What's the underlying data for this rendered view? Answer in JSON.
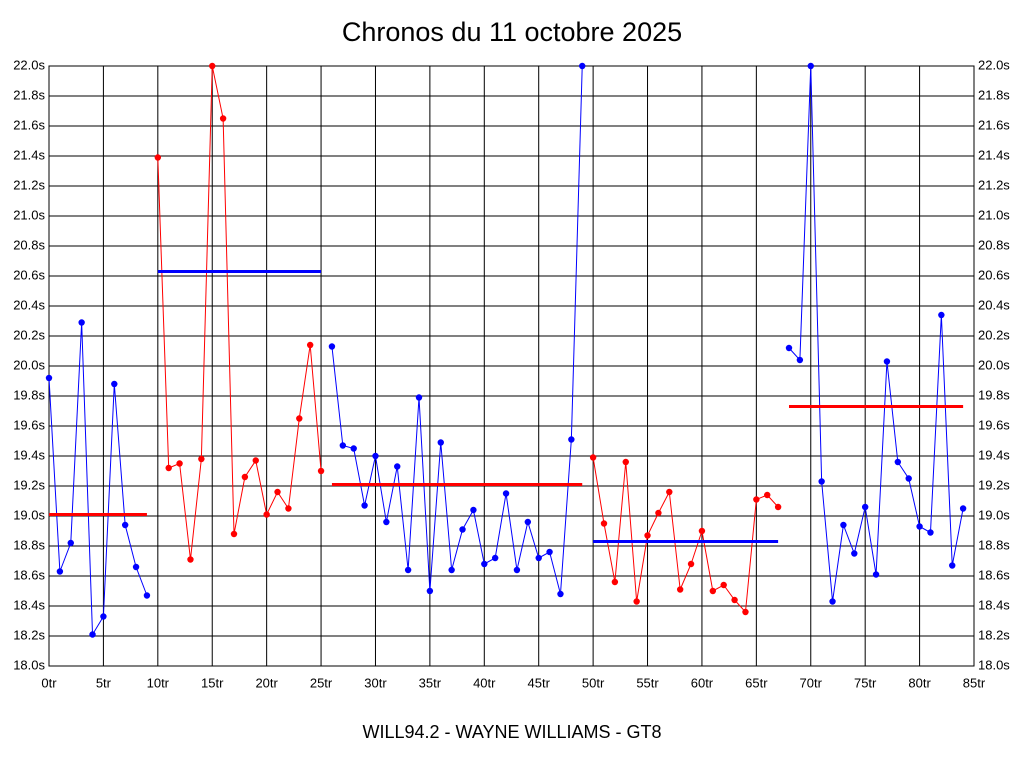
{
  "chart_data": {
    "type": "line",
    "title": "Chronos du 11 octobre 2025",
    "xlabel": "WILL94.2 - WAYNE WILLIAMS - GT8",
    "xlim": [
      0,
      85
    ],
    "xticks": [
      {
        "value": 0,
        "label": "0tr"
      },
      {
        "value": 5,
        "label": "5tr"
      },
      {
        "value": 10,
        "label": "10tr"
      },
      {
        "value": 15,
        "label": "15tr"
      },
      {
        "value": 20,
        "label": "20tr"
      },
      {
        "value": 25,
        "label": "25tr"
      },
      {
        "value": 30,
        "label": "30tr"
      },
      {
        "value": 35,
        "label": "35tr"
      },
      {
        "value": 40,
        "label": "40tr"
      },
      {
        "value": 45,
        "label": "45tr"
      },
      {
        "value": 50,
        "label": "50tr"
      },
      {
        "value": 55,
        "label": "55tr"
      },
      {
        "value": 60,
        "label": "60tr"
      },
      {
        "value": 65,
        "label": "65tr"
      },
      {
        "value": 70,
        "label": "70tr"
      },
      {
        "value": 75,
        "label": "75tr"
      },
      {
        "value": 80,
        "label": "80tr"
      },
      {
        "value": 85,
        "label": "85tr"
      }
    ],
    "ylim": [
      18,
      22
    ],
    "yticks": [
      {
        "value": 18,
        "label": "18.0s"
      },
      {
        "value": 18.2,
        "label": "18.2s"
      },
      {
        "value": 18.4,
        "label": "18.4s"
      },
      {
        "value": 18.6,
        "label": "18.6s"
      },
      {
        "value": 18.8,
        "label": "18.8s"
      },
      {
        "value": 19,
        "label": "19.0s"
      },
      {
        "value": 19.2,
        "label": "19.2s"
      },
      {
        "value": 19.4,
        "label": "19.4s"
      },
      {
        "value": 19.6,
        "label": "19.6s"
      },
      {
        "value": 19.8,
        "label": "19.8s"
      },
      {
        "value": 20,
        "label": "20.0s"
      },
      {
        "value": 20.2,
        "label": "20.2s"
      },
      {
        "value": 20.4,
        "label": "20.4s"
      },
      {
        "value": 20.6,
        "label": "20.6s"
      },
      {
        "value": 20.8,
        "label": "20.8s"
      },
      {
        "value": 21,
        "label": "21.0s"
      },
      {
        "value": 21.2,
        "label": "21.2s"
      },
      {
        "value": 21.4,
        "label": "21.4s"
      },
      {
        "value": 21.6,
        "label": "21.6s"
      },
      {
        "value": 21.8,
        "label": "21.8s"
      },
      {
        "value": 22,
        "label": "22.0s"
      }
    ],
    "grid": true,
    "series": [
      {
        "color": "#0000ff",
        "mean_color": "#ff0000",
        "mean": 19.01,
        "x": [
          0,
          1,
          2,
          3,
          4,
          5,
          6,
          7,
          8,
          9
        ],
        "values": [
          19.92,
          18.63,
          18.82,
          20.29,
          18.21,
          18.33,
          19.88,
          18.94,
          18.66,
          18.47
        ]
      },
      {
        "color": "#ff0000",
        "mean_color": "#0000ff",
        "mean": 20.63,
        "x": [
          10,
          11,
          12,
          13,
          14,
          15,
          16,
          17,
          18,
          19,
          20,
          21,
          22,
          23,
          24,
          25
        ],
        "values": [
          21.39,
          19.32,
          19.35,
          18.71,
          19.38,
          22.0,
          21.65,
          18.88,
          19.26,
          19.37,
          19.01,
          19.16,
          19.05,
          19.65,
          20.14,
          19.3
        ]
      },
      {
        "color": "#0000ff",
        "mean_color": "#ff0000",
        "mean": 19.21,
        "x": [
          26,
          27,
          28,
          29,
          30,
          31,
          32,
          33,
          34,
          35,
          36,
          37,
          38,
          39,
          40,
          41,
          42,
          43,
          44,
          45,
          46,
          47,
          48,
          49
        ],
        "values": [
          20.13,
          19.47,
          19.45,
          19.07,
          19.4,
          18.96,
          19.33,
          18.64,
          19.79,
          18.5,
          19.49,
          18.64,
          18.91,
          19.04,
          18.68,
          18.72,
          19.15,
          18.64,
          18.96,
          18.72,
          18.76,
          18.48,
          19.51,
          22.0
        ]
      },
      {
        "color": "#ff0000",
        "mean_color": "#0000ff",
        "mean": 18.83,
        "x": [
          50,
          51,
          52,
          53,
          54,
          55,
          56,
          57,
          58,
          59,
          60,
          61,
          62,
          63,
          64,
          65,
          66,
          67
        ],
        "values": [
          19.39,
          18.95,
          18.56,
          19.36,
          18.43,
          18.87,
          19.02,
          19.16,
          18.51,
          18.68,
          18.9,
          18.5,
          18.54,
          18.44,
          18.36,
          19.11,
          19.14,
          19.06
        ]
      },
      {
        "color": "#0000ff",
        "mean_color": "#ff0000",
        "mean": 19.73,
        "x": [
          68,
          69,
          70,
          71,
          72,
          73,
          74,
          75,
          76,
          77,
          78,
          79,
          80,
          81,
          82,
          83,
          84
        ],
        "values": [
          20.12,
          20.04,
          22.0,
          19.23,
          18.43,
          18.94,
          18.75,
          19.06,
          18.61,
          20.03,
          19.36,
          19.25,
          18.93,
          18.89,
          20.34,
          18.67,
          19.05
        ]
      }
    ]
  }
}
